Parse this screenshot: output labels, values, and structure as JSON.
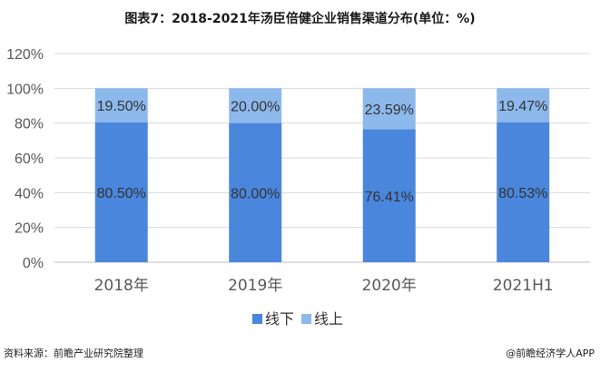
{
  "title": "图表7：2018-2021年汤臣倍健企业销售渠道分布(单位：%)",
  "source": "资料来源：前瞻产业研究院整理",
  "credit": "@前瞻经济学人APP",
  "colors": {
    "offline": "#4a86dc",
    "online": "#8db8ec",
    "grid": "#d9d9d9",
    "axis_text": "#595959"
  },
  "chart_data": {
    "type": "bar",
    "stacked": true,
    "categories": [
      "2018年",
      "2019年",
      "2020年",
      "2021H1"
    ],
    "series": [
      {
        "name": "线下",
        "values": [
          80.5,
          80.0,
          76.41,
          80.53
        ],
        "labels": [
          "80.50%",
          "80.00%",
          "76.41%",
          "80.53%"
        ]
      },
      {
        "name": "线上",
        "values": [
          19.5,
          20.0,
          23.59,
          19.47
        ],
        "labels": [
          "19.50%",
          "20.00%",
          "23.59%",
          "19.47%"
        ]
      }
    ],
    "ylim": [
      0,
      120
    ],
    "yticks": [
      "0%",
      "20%",
      "40%",
      "60%",
      "80%",
      "100%",
      "120%"
    ],
    "grid": true,
    "legend": "bottom-center"
  }
}
